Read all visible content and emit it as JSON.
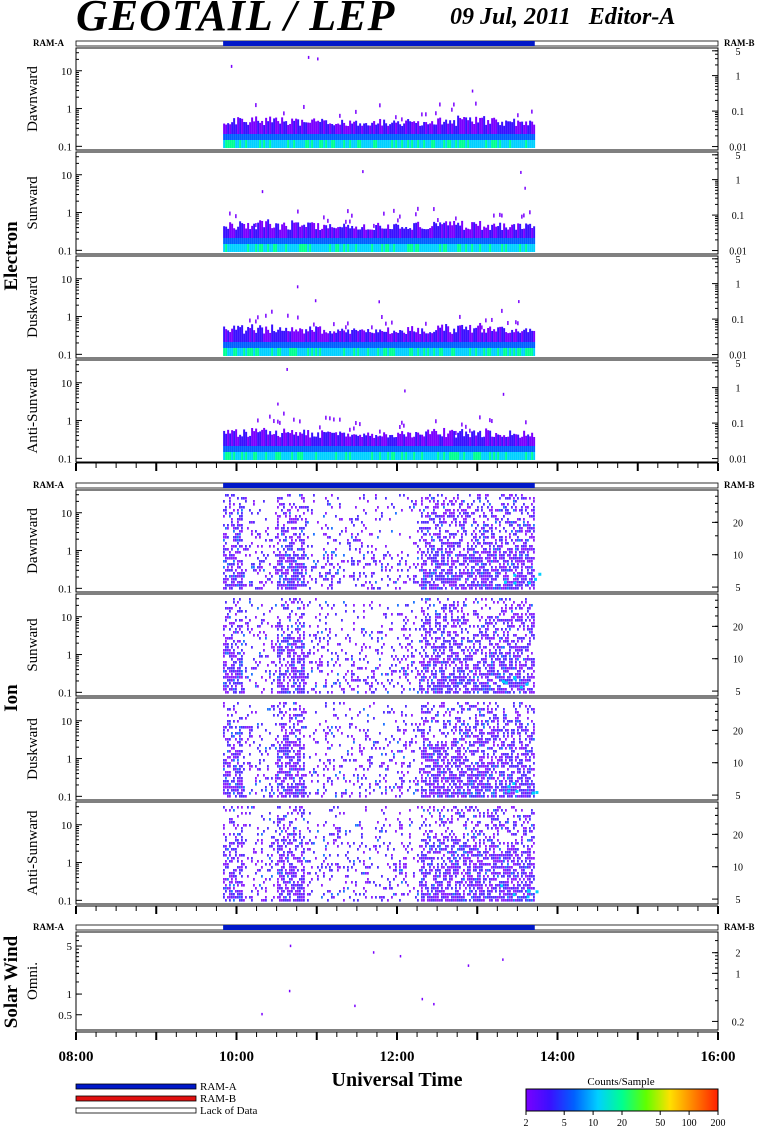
{
  "header": {
    "title": "GEOTAIL / LEP",
    "date": "09 Jul, 2011",
    "editor": "Editor-A"
  },
  "ram": {
    "left": "RAM-A",
    "right": "RAM-B"
  },
  "groups": [
    {
      "name": "Electron",
      "panels": [
        "Dawnward",
        "Sunward",
        "Duskward",
        "Anti-Sunward"
      ],
      "left_ticks": [
        "10",
        "1",
        "0.1"
      ],
      "right_ticks": [
        "5",
        "1",
        "0.1",
        "0.01"
      ]
    },
    {
      "name": "Ion",
      "panels": [
        "Dawnward",
        "Sunward",
        "Duskward",
        "Anti-Sunward"
      ],
      "left_ticks": [
        "10",
        "1",
        "0.1"
      ],
      "right_ticks": [
        "20",
        "10",
        "5"
      ]
    },
    {
      "name": "Solar Wind",
      "panels": [
        "Omni."
      ],
      "left_ticks": [
        "5",
        "1",
        "0.5"
      ],
      "right_ticks": [
        "2",
        "1",
        "0.2"
      ]
    }
  ],
  "xaxis": {
    "label": "Universal Time",
    "ticks": [
      "08:00",
      "10:00",
      "12:00",
      "14:00",
      "16:00"
    ]
  },
  "legend": {
    "items": [
      {
        "label": "RAM-A",
        "color": "#0018c8"
      },
      {
        "label": "RAM-B",
        "color": "#e01010"
      },
      {
        "label": "Lack of Data",
        "color": "#ffffff"
      }
    ]
  },
  "colorbar": {
    "title": "Counts/Sample",
    "ticks": [
      "2",
      "5",
      "10",
      "20",
      "50",
      "100",
      "200"
    ],
    "colors": [
      "#7a00ff",
      "#3a10ff",
      "#0060ff",
      "#00d0ff",
      "#00ff90",
      "#60ff00",
      "#ffe000",
      "#ff8000",
      "#ff2000"
    ]
  },
  "chart_data": {
    "type": "heatmap",
    "title": "GEOTAIL / LEP",
    "xlabel": "Universal Time",
    "xlim": [
      "08:00",
      "16:00"
    ],
    "data_interval": [
      "09:50",
      "13:43"
    ],
    "ram_coverage": "RAM-A",
    "panels": [
      {
        "group": "Electron",
        "name": "Dawnward",
        "ylim_left": [
          0.08,
          40
        ],
        "ylim_right": [
          0.008,
          6
        ]
      },
      {
        "group": "Electron",
        "name": "Sunward",
        "ylim_left": [
          0.08,
          40
        ],
        "ylim_right": [
          0.008,
          6
        ]
      },
      {
        "group": "Electron",
        "name": "Duskward",
        "ylim_left": [
          0.08,
          40
        ],
        "ylim_right": [
          0.008,
          6
        ]
      },
      {
        "group": "Electron",
        "name": "Anti-Sunward",
        "ylim_left": [
          0.08,
          40
        ],
        "ylim_right": [
          0.008,
          6
        ]
      },
      {
        "group": "Ion",
        "name": "Dawnward",
        "ylim_left": [
          0.08,
          40
        ],
        "ylim_right": [
          4.5,
          40
        ]
      },
      {
        "group": "Ion",
        "name": "Sunward",
        "ylim_left": [
          0.08,
          40
        ],
        "ylim_right": [
          4.5,
          40
        ]
      },
      {
        "group": "Ion",
        "name": "Duskward",
        "ylim_left": [
          0.08,
          40
        ],
        "ylim_right": [
          4.5,
          40
        ]
      },
      {
        "group": "Ion",
        "name": "Anti-Sunward",
        "ylim_left": [
          0.08,
          40
        ],
        "ylim_right": [
          4.5,
          40
        ]
      },
      {
        "group": "Solar Wind",
        "name": "Omni.",
        "ylim_left": [
          0.3,
          8
        ],
        "ylim_right": [
          0.15,
          4
        ]
      }
    ],
    "colorbar_label": "Counts/Sample",
    "colorbar_range": [
      2,
      200
    ]
  }
}
